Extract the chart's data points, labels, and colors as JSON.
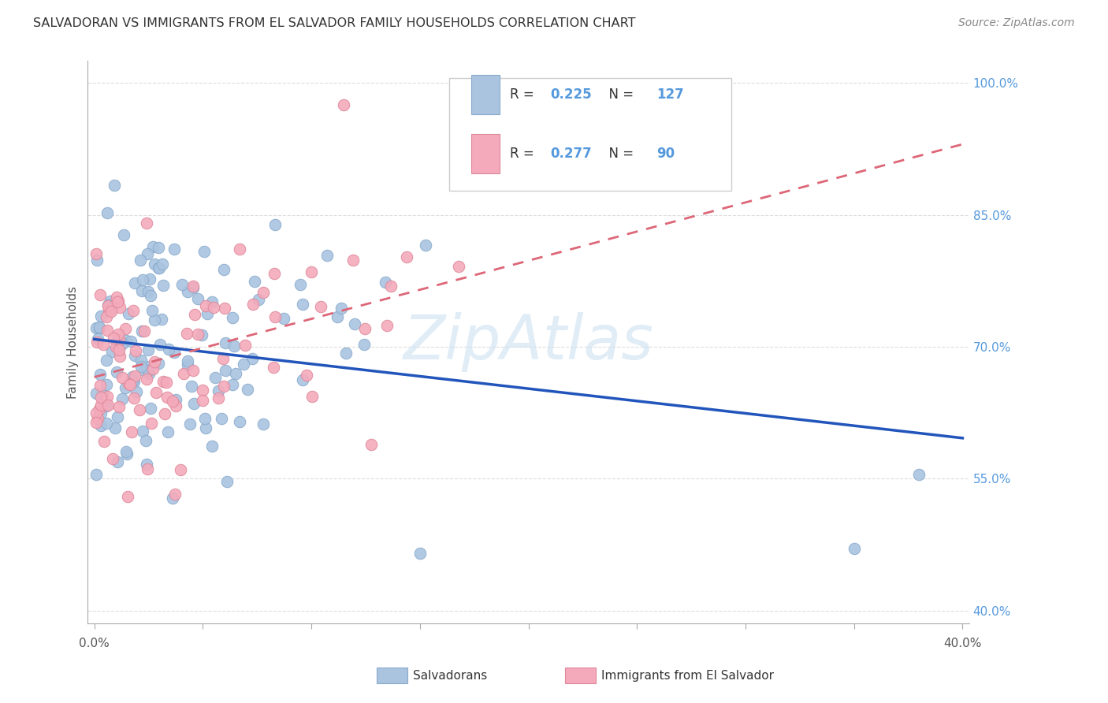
{
  "title": "SALVADORAN VS IMMIGRANTS FROM EL SALVADOR FAMILY HOUSEHOLDS CORRELATION CHART",
  "source": "Source: ZipAtlas.com",
  "ylabel": "Family Households",
  "ytick_vals": [
    1.0,
    0.85,
    0.7,
    0.55,
    0.4
  ],
  "ytick_labels": [
    "100.0%",
    "85.0%",
    "70.0%",
    "55.0%",
    "40.0%"
  ],
  "xlim": [
    0.0,
    0.4
  ],
  "ylim": [
    0.4,
    1.02
  ],
  "legend_blue_R": "0.225",
  "legend_blue_N": "127",
  "legend_pink_R": "0.277",
  "legend_pink_N": "90",
  "legend_label_blue": "Salvadorans",
  "legend_label_pink": "Immigrants from El Salvador",
  "blue_scatter_color": "#aac4e0",
  "pink_scatter_color": "#f4aabb",
  "blue_edge_color": "#88aacc",
  "pink_edge_color": "#dd8899",
  "blue_line_color": "#2255bb",
  "pink_line_color": "#dd6677",
  "watermark": "ZipAtlas",
  "watermark_color": "#cce0f0",
  "tick_color": "#aaaaaa",
  "ytick_color": "#5599dd",
  "grid_color": "#dddddd",
  "title_color": "#333333",
  "source_color": "#888888",
  "label_color": "#555555"
}
